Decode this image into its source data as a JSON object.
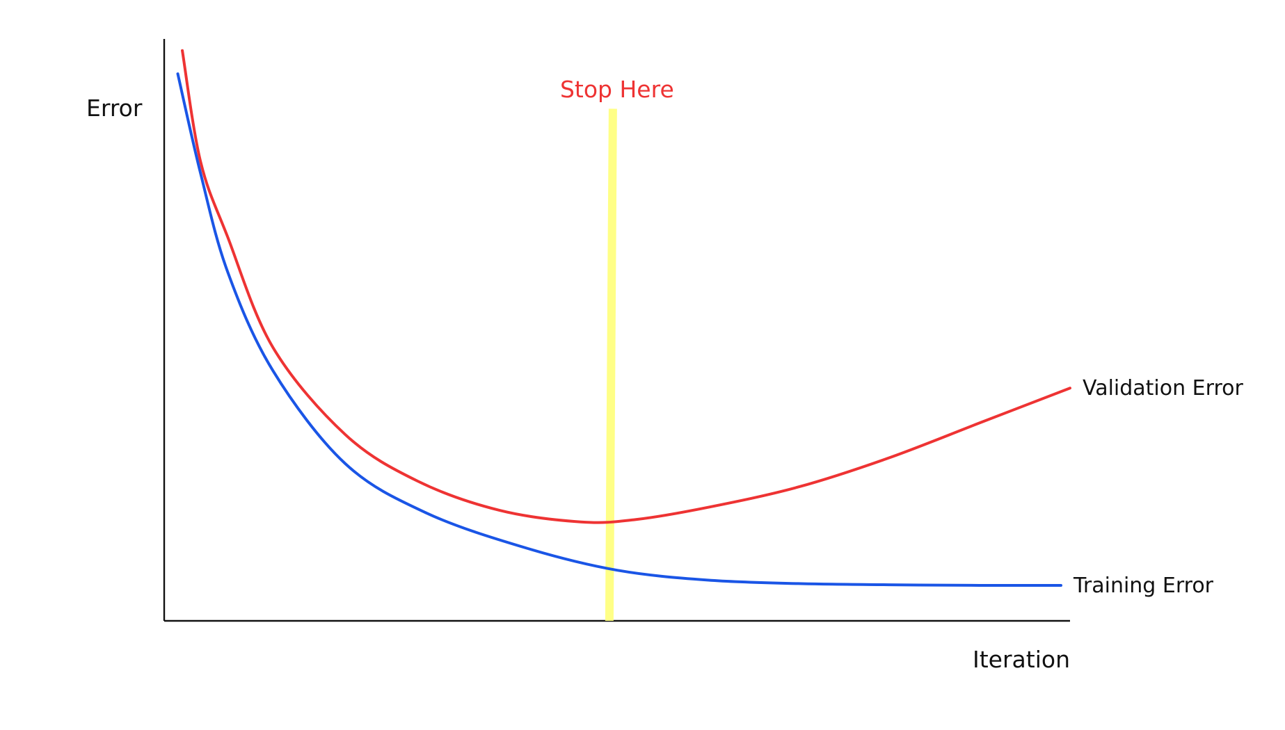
{
  "chart_data": {
    "type": "line",
    "xlabel": "Iteration",
    "ylabel": "Error",
    "xlim": [
      0,
      100
    ],
    "ylim": [
      0,
      100
    ],
    "grid": false,
    "ticks": false,
    "series": [
      {
        "name": "Validation Error",
        "color": "#ee3333",
        "points": [
          [
            2,
            98
          ],
          [
            4,
            79
          ],
          [
            7,
            66
          ],
          [
            12,
            47
          ],
          [
            20,
            32
          ],
          [
            28,
            24
          ],
          [
            37,
            19
          ],
          [
            46,
            17
          ],
          [
            52,
            17.4
          ],
          [
            60,
            19.5
          ],
          [
            70,
            23
          ],
          [
            80,
            28
          ],
          [
            90,
            34
          ],
          [
            100,
            40
          ]
        ]
      },
      {
        "name": "Training Error",
        "color": "#1a55e6",
        "points": [
          [
            1.5,
            94
          ],
          [
            4,
            77
          ],
          [
            7,
            60
          ],
          [
            12,
            43
          ],
          [
            20,
            27
          ],
          [
            29,
            18.5
          ],
          [
            40,
            12.5
          ],
          [
            50,
            8.7
          ],
          [
            60,
            7
          ],
          [
            70,
            6.4
          ],
          [
            80,
            6.2
          ],
          [
            90,
            6.1
          ],
          [
            99,
            6.1
          ]
        ]
      }
    ],
    "annotations": [
      {
        "label": "Stop Here",
        "label_color": "#ee3333",
        "line_color": "#ffff80",
        "x": 49.3,
        "y_from": 0,
        "y_to": 88
      }
    ]
  }
}
